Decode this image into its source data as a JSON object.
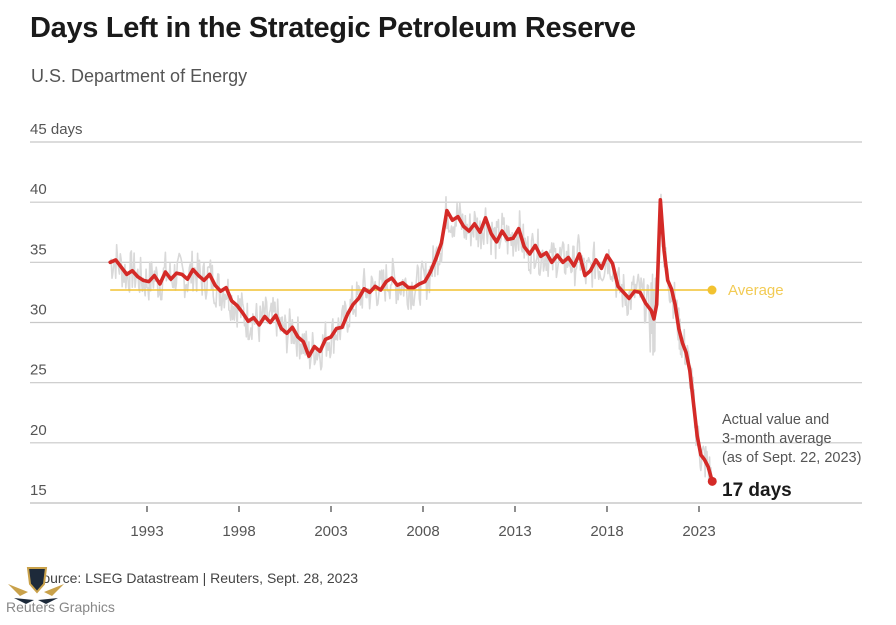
{
  "header": {
    "title": "Days Left in the Strategic Petroleum Reserve",
    "subtitle": "U.S. Department of Energy"
  },
  "footer": {
    "source": "Source: LSEG Datastream | Reuters, Sept. 28, 2023",
    "brand": "Reuters Graphics"
  },
  "colors": {
    "main_line": "#d42a27",
    "raw_line": "#d9d9d9",
    "average_line": "#f2c230",
    "average_label": "#f2cb55",
    "grid": "#c8c8c8",
    "axis_text": "#555555"
  },
  "chart_data": {
    "type": "line",
    "title": "Days Left in the Strategic Petroleum Reserve",
    "subtitle": "U.S. Department of Energy",
    "xlabel": "",
    "ylabel": "days",
    "ylim": [
      15,
      45
    ],
    "xlim": [
      1989.7,
      2026
    ],
    "y_ticks": [
      15,
      20,
      25,
      30,
      35,
      40,
      45
    ],
    "y_tick_labels": [
      "15",
      "20",
      "25",
      "30",
      "35",
      "40",
      "45 days"
    ],
    "x_ticks": [
      1993,
      1998,
      2003,
      2008,
      2013,
      2018,
      2023
    ],
    "x_tick_labels": [
      "1993",
      "1998",
      "2003",
      "2008",
      "2013",
      "2018",
      "2023"
    ],
    "grid": true,
    "legend": "none",
    "average": {
      "label": "Average",
      "value": 32.7
    },
    "annotation": {
      "lines": [
        "Actual value and",
        "3-month average",
        "(as of Sept. 22, 2023)"
      ],
      "value_label": "17 days",
      "value": 16.8,
      "date": "2023.72"
    },
    "series": [
      {
        "name": "3-month average",
        "x": [
          1991.0,
          1991.3,
          1991.6,
          1991.9,
          1992.2,
          1992.5,
          1992.8,
          1993.1,
          1993.4,
          1993.7,
          1994.0,
          1994.3,
          1994.6,
          1994.9,
          1995.2,
          1995.5,
          1995.8,
          1996.1,
          1996.4,
          1996.7,
          1997.0,
          1997.3,
          1997.6,
          1997.9,
          1998.2,
          1998.5,
          1998.8,
          1999.1,
          1999.4,
          1999.7,
          2000.0,
          2000.3,
          2000.6,
          2000.9,
          2001.2,
          2001.5,
          2001.8,
          2002.1,
          2002.4,
          2002.7,
          2003.0,
          2003.3,
          2003.6,
          2003.9,
          2004.2,
          2004.5,
          2004.8,
          2005.1,
          2005.4,
          2005.7,
          2006.0,
          2006.3,
          2006.6,
          2006.9,
          2007.2,
          2007.5,
          2007.8,
          2008.1,
          2008.4,
          2008.7,
          2009.0,
          2009.3,
          2009.6,
          2009.9,
          2010.2,
          2010.5,
          2010.8,
          2011.1,
          2011.4,
          2011.7,
          2012.0,
          2012.3,
          2012.6,
          2012.9,
          2013.2,
          2013.5,
          2013.8,
          2014.1,
          2014.4,
          2014.7,
          2015.0,
          2015.3,
          2015.6,
          2015.9,
          2016.2,
          2016.5,
          2016.8,
          2017.1,
          2017.4,
          2017.7,
          2018.0,
          2018.3,
          2018.6,
          2018.9,
          2019.2,
          2019.5,
          2019.8,
          2020.1,
          2020.4,
          2020.55,
          2020.7,
          2020.9,
          2021.1,
          2021.3,
          2021.5,
          2021.7,
          2021.9,
          2022.1,
          2022.3,
          2022.5,
          2022.7,
          2022.9,
          2023.1,
          2023.3,
          2023.5,
          2023.72
        ],
        "values": [
          35.0,
          35.2,
          34.6,
          34.0,
          34.3,
          33.8,
          33.5,
          33.4,
          33.9,
          33.2,
          34.2,
          33.6,
          34.1,
          34.0,
          33.6,
          34.4,
          33.9,
          33.5,
          34.0,
          33.1,
          32.6,
          32.9,
          31.8,
          31.4,
          30.8,
          30.1,
          30.4,
          29.8,
          30.5,
          30.0,
          30.6,
          29.5,
          29.1,
          29.6,
          28.8,
          28.4,
          27.2,
          28.0,
          27.6,
          28.6,
          28.8,
          29.5,
          29.6,
          30.7,
          31.5,
          32.0,
          32.8,
          32.5,
          33.0,
          32.7,
          33.4,
          33.7,
          33.1,
          33.3,
          32.9,
          32.9,
          33.2,
          33.4,
          34.2,
          35.3,
          36.6,
          39.3,
          38.5,
          38.8,
          38.0,
          37.6,
          38.2,
          37.5,
          38.7,
          37.4,
          36.7,
          37.6,
          36.9,
          37.0,
          37.8,
          36.3,
          35.7,
          36.4,
          35.5,
          35.8,
          35.0,
          35.6,
          35.0,
          35.4,
          34.7,
          35.7,
          33.9,
          34.3,
          35.2,
          34.5,
          35.6,
          34.9,
          33.0,
          32.5,
          32.0,
          32.6,
          32.5,
          31.6,
          31.0,
          30.3,
          31.5,
          40.2,
          36.0,
          33.5,
          32.8,
          31.5,
          29.5,
          28.3,
          27.5,
          26.0,
          23.3,
          20.6,
          19.0,
          18.6,
          18.0,
          16.8
        ]
      }
    ]
  }
}
